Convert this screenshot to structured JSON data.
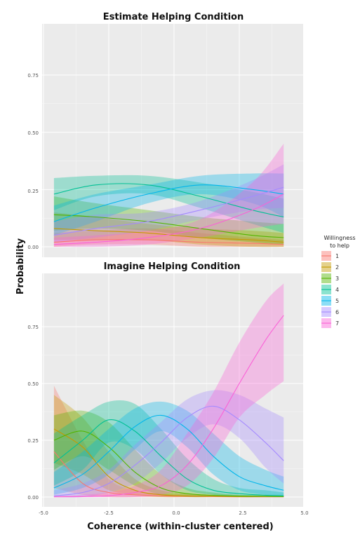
{
  "chart_data": [
    {
      "type": "line",
      "title": "Estimate Helping Condition",
      "ylim": [
        0,
        0.87
      ],
      "xlim": [
        -5.0,
        5.0
      ],
      "x": [
        -4.6,
        -3.0,
        -1.0,
        1.0,
        3.0,
        4.2
      ],
      "series": [
        {
          "name": "1",
          "color": "#F8766D",
          "values": [
            0.02,
            0.03,
            0.03,
            0.02,
            0.015,
            0.01
          ],
          "lower": [
            0.0,
            0.01,
            0.01,
            0.0,
            0.0,
            0.0
          ],
          "upper": [
            0.06,
            0.07,
            0.08,
            0.06,
            0.04,
            0.03
          ]
        },
        {
          "name": "2",
          "color": "#C49A00",
          "values": [
            0.08,
            0.07,
            0.06,
            0.04,
            0.03,
            0.02
          ],
          "lower": [
            0.03,
            0.03,
            0.03,
            0.01,
            0.0,
            0.0
          ],
          "upper": [
            0.15,
            0.13,
            0.1,
            0.08,
            0.07,
            0.06
          ]
        },
        {
          "name": "3",
          "color": "#53B400",
          "values": [
            0.14,
            0.13,
            0.11,
            0.08,
            0.05,
            0.04
          ],
          "lower": [
            0.07,
            0.08,
            0.07,
            0.04,
            0.02,
            0.01
          ],
          "upper": [
            0.22,
            0.19,
            0.16,
            0.13,
            0.11,
            0.1
          ]
        },
        {
          "name": "4",
          "color": "#00C094",
          "values": [
            0.23,
            0.27,
            0.27,
            0.22,
            0.16,
            0.13
          ],
          "lower": [
            0.16,
            0.22,
            0.23,
            0.17,
            0.1,
            0.06
          ],
          "upper": [
            0.3,
            0.31,
            0.31,
            0.28,
            0.24,
            0.21
          ]
        },
        {
          "name": "5",
          "color": "#00B6EB",
          "values": [
            0.11,
            0.17,
            0.23,
            0.27,
            0.25,
            0.23
          ],
          "lower": [
            0.05,
            0.11,
            0.19,
            0.23,
            0.19,
            0.13
          ],
          "upper": [
            0.18,
            0.23,
            0.27,
            0.31,
            0.32,
            0.32
          ]
        },
        {
          "name": "6",
          "color": "#A58AFF",
          "values": [
            0.05,
            0.08,
            0.11,
            0.16,
            0.22,
            0.26
          ],
          "lower": [
            0.02,
            0.04,
            0.07,
            0.12,
            0.16,
            0.17
          ],
          "upper": [
            0.11,
            0.14,
            0.15,
            0.2,
            0.29,
            0.36
          ]
        },
        {
          "name": "7",
          "color": "#FB61D7",
          "values": [
            0.01,
            0.02,
            0.04,
            0.08,
            0.16,
            0.23
          ],
          "lower": [
            0.0,
            0.0,
            0.01,
            0.04,
            0.08,
            0.1
          ],
          "upper": [
            0.04,
            0.05,
            0.07,
            0.12,
            0.28,
            0.45
          ]
        }
      ]
    },
    {
      "type": "line",
      "title": "Imagine Helping Condition",
      "ylim": [
        0,
        0.87
      ],
      "xlim": [
        -5.0,
        5.0
      ],
      "x": [
        -4.6,
        -3.5,
        -2.5,
        -1.5,
        -0.5,
        0.5,
        1.5,
        2.5,
        3.5,
        4.2
      ],
      "series": [
        {
          "name": "1",
          "color": "#F8766D",
          "values": [
            0.2,
            0.06,
            0.02,
            0.01,
            0.005,
            0.003,
            0.002,
            0.001,
            0.001,
            0.001
          ],
          "lower": [
            0.04,
            0.01,
            0.0,
            0.0,
            0.0,
            0.0,
            0.0,
            0.0,
            0.0,
            0.0
          ],
          "upper": [
            0.49,
            0.25,
            0.08,
            0.03,
            0.015,
            0.01,
            0.008,
            0.006,
            0.005,
            0.005
          ]
        },
        {
          "name": "2",
          "color": "#C49A00",
          "values": [
            0.3,
            0.22,
            0.09,
            0.03,
            0.01,
            0.005,
            0.003,
            0.002,
            0.002,
            0.002
          ],
          "lower": [
            0.15,
            0.1,
            0.03,
            0.01,
            0.0,
            0.0,
            0.0,
            0.0,
            0.0,
            0.0
          ],
          "upper": [
            0.45,
            0.35,
            0.2,
            0.08,
            0.03,
            0.015,
            0.01,
            0.008,
            0.006,
            0.005
          ]
        },
        {
          "name": "3",
          "color": "#53B400",
          "values": [
            0.25,
            0.29,
            0.22,
            0.11,
            0.04,
            0.015,
            0.007,
            0.004,
            0.003,
            0.002
          ],
          "lower": [
            0.12,
            0.18,
            0.12,
            0.05,
            0.01,
            0.0,
            0.0,
            0.0,
            0.0,
            0.0
          ],
          "upper": [
            0.36,
            0.38,
            0.33,
            0.21,
            0.1,
            0.04,
            0.02,
            0.01,
            0.008,
            0.006
          ]
        },
        {
          "name": "4",
          "color": "#00C094",
          "values": [
            0.15,
            0.25,
            0.34,
            0.29,
            0.18,
            0.08,
            0.03,
            0.015,
            0.008,
            0.006
          ],
          "lower": [
            0.05,
            0.12,
            0.24,
            0.21,
            0.1,
            0.03,
            0.01,
            0.0,
            0.0,
            0.0
          ],
          "upper": [
            0.28,
            0.36,
            0.42,
            0.41,
            0.3,
            0.17,
            0.08,
            0.04,
            0.03,
            0.02
          ]
        },
        {
          "name": "5",
          "color": "#00B6EB",
          "values": [
            0.04,
            0.1,
            0.2,
            0.31,
            0.36,
            0.3,
            0.18,
            0.09,
            0.05,
            0.03
          ],
          "lower": [
            0.01,
            0.04,
            0.1,
            0.21,
            0.29,
            0.22,
            0.1,
            0.03,
            0.01,
            0.0
          ],
          "upper": [
            0.11,
            0.2,
            0.3,
            0.39,
            0.42,
            0.38,
            0.28,
            0.18,
            0.12,
            0.09
          ]
        },
        {
          "name": "6",
          "color": "#A58AFF",
          "values": [
            0.005,
            0.02,
            0.06,
            0.14,
            0.24,
            0.35,
            0.4,
            0.34,
            0.24,
            0.16
          ],
          "lower": [
            0.0,
            0.0,
            0.02,
            0.06,
            0.15,
            0.26,
            0.32,
            0.26,
            0.13,
            0.06
          ],
          "upper": [
            0.03,
            0.06,
            0.12,
            0.23,
            0.33,
            0.43,
            0.47,
            0.45,
            0.39,
            0.35
          ]
        },
        {
          "name": "7",
          "color": "#FB61D7",
          "values": [
            0.001,
            0.002,
            0.006,
            0.02,
            0.05,
            0.14,
            0.3,
            0.5,
            0.69,
            0.8
          ],
          "lower": [
            0.0,
            0.0,
            0.0,
            0.0,
            0.01,
            0.05,
            0.17,
            0.35,
            0.45,
            0.51
          ],
          "upper": [
            0.004,
            0.01,
            0.02,
            0.05,
            0.12,
            0.28,
            0.46,
            0.68,
            0.86,
            0.94
          ]
        }
      ]
    }
  ],
  "labels": {
    "ylabel": "Probability",
    "xlabel": "Coherence (within-cluster centered)",
    "legend_title_line1": "Willingness",
    "legend_title_line2": "to help",
    "yticks": [
      "0.00",
      "0.25",
      "0.50",
      "0.75"
    ],
    "xticks": [
      "-5.0",
      "-2.5",
      "0.0",
      "2.5",
      "5.0"
    ]
  },
  "colors": {
    "panel_bg": "#EBEBEB",
    "grid": "#FFFFFF"
  }
}
